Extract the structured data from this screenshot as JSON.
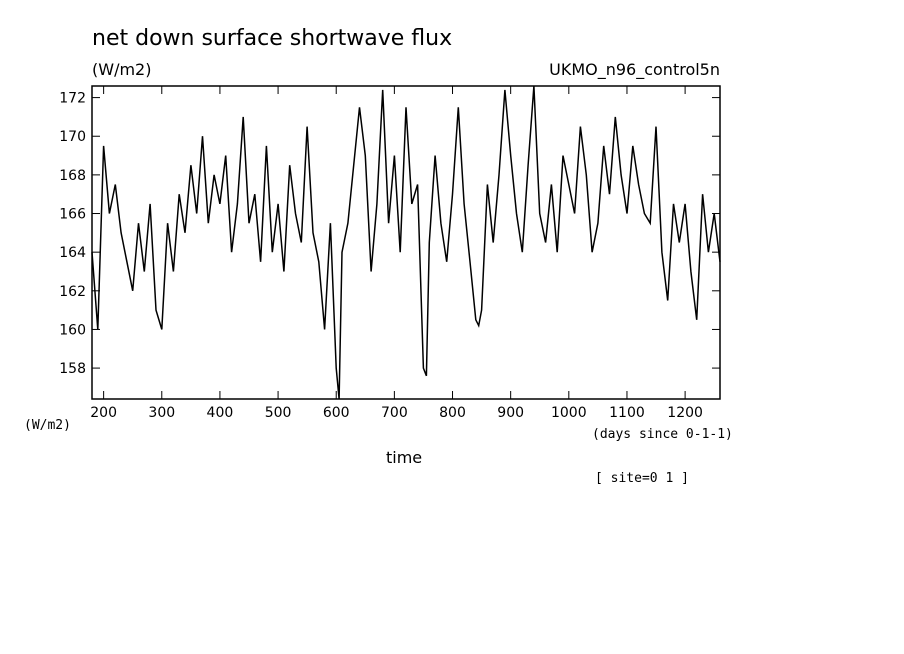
{
  "chart_data": {
    "type": "line",
    "title": "net down surface shortwave flux",
    "units_left": "(W/m2)",
    "dataset": "UKMO_n96_control5n",
    "ylabel": "(W/m2)",
    "xlabel": "time",
    "x_units": "(days since 0-1-1)",
    "site_note": "[ site=0 1 ]",
    "xlim": [
      180,
      1260
    ],
    "ylim": [
      156.4,
      172.6
    ],
    "x_ticks": [
      200,
      300,
      400,
      500,
      600,
      700,
      800,
      900,
      1000,
      1100,
      1200
    ],
    "y_ticks": [
      158,
      160,
      162,
      164,
      166,
      168,
      170,
      172
    ],
    "grid": false,
    "series": [
      {
        "x": [
          180,
          190,
          200,
          210,
          220,
          230,
          240,
          250,
          260,
          270,
          280,
          290,
          300,
          310,
          320,
          330,
          340,
          350,
          360,
          370,
          380,
          390,
          400,
          410,
          420,
          430,
          440,
          450,
          460,
          470,
          480,
          490,
          500,
          510,
          520,
          530,
          540,
          550,
          560,
          570,
          580,
          590,
          600,
          605,
          610,
          620,
          630,
          640,
          650,
          660,
          670,
          680,
          690,
          700,
          710,
          720,
          730,
          740,
          750,
          755,
          760,
          770,
          780,
          790,
          800,
          810,
          820,
          830,
          840,
          845,
          850,
          860,
          870,
          880,
          890,
          900,
          910,
          920,
          930,
          940,
          950,
          960,
          970,
          980,
          990,
          1000,
          1010,
          1020,
          1030,
          1040,
          1050,
          1060,
          1070,
          1080,
          1090,
          1100,
          1110,
          1120,
          1130,
          1140,
          1150,
          1160,
          1170,
          1180,
          1190,
          1200,
          1210,
          1220,
          1230,
          1240,
          1250,
          1260
        ],
        "y": [
          164.0,
          160.0,
          169.5,
          166.0,
          167.5,
          165.0,
          163.5,
          162.0,
          165.5,
          163.0,
          166.5,
          161.0,
          160.0,
          165.5,
          163.0,
          167.0,
          165.0,
          168.5,
          166.0,
          170.0,
          165.5,
          168.0,
          166.5,
          169.0,
          164.0,
          166.5,
          171.0,
          165.5,
          167.0,
          163.5,
          169.5,
          164.0,
          166.5,
          163.0,
          168.5,
          166.0,
          164.5,
          170.5,
          165.0,
          163.5,
          160.0,
          165.5,
          158.0,
          156.4,
          164.0,
          165.5,
          168.5,
          171.5,
          169.0,
          163.0,
          166.5,
          172.4,
          165.5,
          169.0,
          164.0,
          171.5,
          166.5,
          167.5,
          158.0,
          157.6,
          164.5,
          169.0,
          165.5,
          163.5,
          167.0,
          171.5,
          166.5,
          163.5,
          160.5,
          160.2,
          161.0,
          167.5,
          164.5,
          168.0,
          172.4,
          169.0,
          166.0,
          164.0,
          168.5,
          172.6,
          166.0,
          164.5,
          167.5,
          164.0,
          169.0,
          167.5,
          166.0,
          170.5,
          168.0,
          164.0,
          165.5,
          169.5,
          167.0,
          171.0,
          168.0,
          166.0,
          169.5,
          167.5,
          166.0,
          165.5,
          170.5,
          164.0,
          161.5,
          166.5,
          164.5,
          166.5,
          163.0,
          160.5,
          167.0,
          164.0,
          166.0,
          163.5
        ]
      }
    ]
  }
}
